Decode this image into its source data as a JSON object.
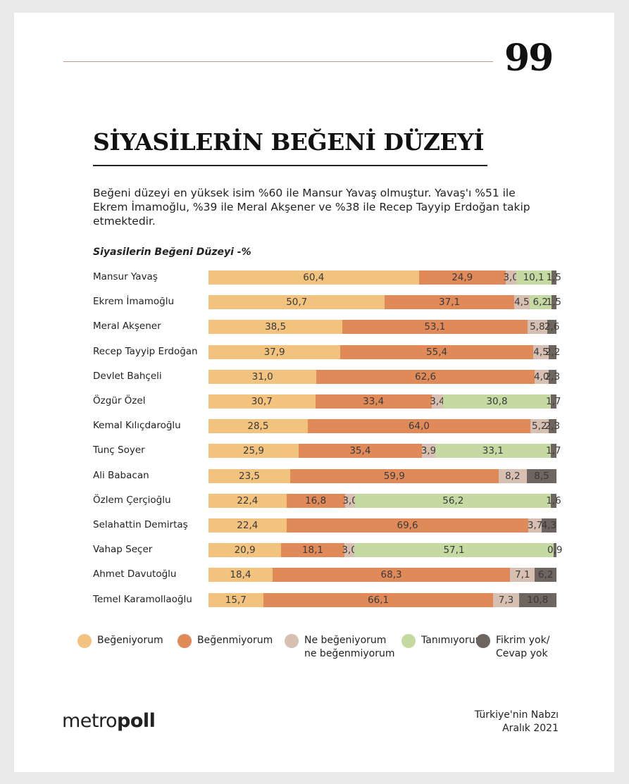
{
  "page_number": "99",
  "title": "SİYASİLERİN BEĞENİ DÜZEYİ",
  "intro": "Beğeni düzeyi en yüksek isim %60 ile Mansur Yavaş olmuştur. Yavaş'ı %51 ile Ekrem İmamoğlu, %39 ile Meral Akşener ve %38 ile Recep Tayyip Erdoğan takip etmektedir.",
  "logo": {
    "part1": "metro",
    "part2": "poll"
  },
  "footer": {
    "line1": "Türkiye'nin Nabzı",
    "line2": "Aralık 2021"
  },
  "chart_data": {
    "type": "bar",
    "orientation": "horizontal",
    "stacked": true,
    "title": "Siyasilerin Beğeni Düzeyi -%",
    "xlim": [
      0,
      100
    ],
    "grid": false,
    "legend_placement": "bottom",
    "categories": [
      "Mansur Yavaş",
      "Ekrem İmamoğlu",
      "Meral Akşener",
      "Recep Tayyip Erdoğan",
      "Devlet Bahçeli",
      "Özgür Özel",
      "Kemal Kılıçdaroğlu",
      "Tunç Soyer",
      "Ali Babacan",
      "Özlem Çerçioğlu",
      "Selahattin Demirtaş",
      "Vahap Seçer",
      "Ahmet Davutoğlu",
      "Temel Karamollaoğlu"
    ],
    "series": [
      {
        "name": "Beğeniyorum",
        "color": "#f2c27f",
        "values": [
          60.4,
          50.7,
          38.5,
          37.9,
          31.0,
          30.7,
          28.5,
          25.9,
          23.5,
          22.4,
          22.4,
          20.9,
          18.4,
          15.7
        ]
      },
      {
        "name": "Beğenmiyorum",
        "color": "#e08a5a",
        "values": [
          24.9,
          37.1,
          53.1,
          55.4,
          62.6,
          33.4,
          64.0,
          35.4,
          59.9,
          16.8,
          69.6,
          18.1,
          68.3,
          66.1
        ]
      },
      {
        "name": "Ne beğeniyorum ne beğenmiyorum",
        "color": "#d7bfb2",
        "values": [
          3.0,
          4.5,
          5.8,
          4.5,
          4.0,
          3.4,
          5.2,
          3.9,
          8.2,
          3.0,
          3.7,
          3.0,
          7.1,
          7.3
        ]
      },
      {
        "name": "Tanımıyorum",
        "color": "#c5d9a2",
        "values": [
          10.1,
          6.2,
          0,
          0,
          0,
          30.8,
          0,
          33.1,
          0,
          56.2,
          0,
          57.1,
          0,
          0
        ]
      },
      {
        "name": "Fikrim yok/ Cevap yok",
        "color": "#6e6460",
        "values": [
          1.5,
          1.5,
          2.6,
          2.2,
          2.3,
          1.7,
          2.3,
          1.7,
          8.5,
          1.6,
          4.3,
          0.9,
          6.2,
          10.8
        ]
      }
    ]
  }
}
